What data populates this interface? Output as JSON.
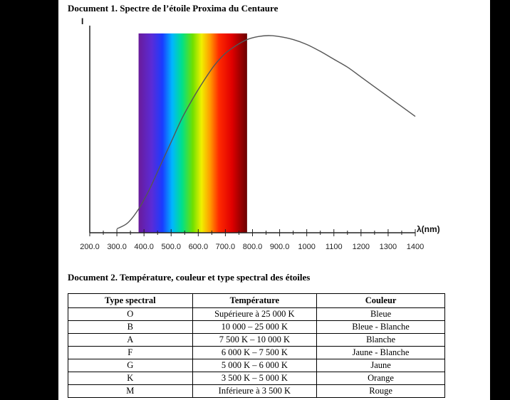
{
  "document1": {
    "title": "Document 1. Spectre de l’étoile Proxima du Centaure"
  },
  "chart_data": {
    "type": "line",
    "title": "",
    "ylabel": "I",
    "xlabel": "λ(nm)",
    "xlim": [
      200,
      1400
    ],
    "x_ticks": [
      "200.0",
      "300.0",
      "400.0",
      "500.0",
      "600.0",
      "700.0",
      "800.0",
      "900.0",
      "1000",
      "1100",
      "1200",
      "1300",
      "1400"
    ],
    "visible_band_nm": [
      380,
      780
    ],
    "grid": false,
    "series": [
      {
        "x": [
          300,
          340,
          380,
          420,
          460,
          500,
          540,
          580,
          620,
          660,
          700,
          740,
          780,
          820,
          860,
          900,
          950,
          1000,
          1050,
          1100,
          1150,
          1200,
          1250,
          1300,
          1350,
          1400
        ],
        "y": [
          0.02,
          0.05,
          0.12,
          0.22,
          0.34,
          0.46,
          0.58,
          0.68,
          0.77,
          0.85,
          0.91,
          0.95,
          0.98,
          0.995,
          1.0,
          0.995,
          0.98,
          0.955,
          0.92,
          0.88,
          0.84,
          0.79,
          0.74,
          0.69,
          0.64,
          0.59
        ]
      }
    ]
  },
  "document2": {
    "title": "Document 2. Température, couleur et type spectral des étoiles",
    "headers": [
      "Type spectral",
      "Température",
      "Couleur"
    ],
    "rows": [
      [
        "O",
        "Supérieure à 25 000 K",
        "Bleue"
      ],
      [
        "B",
        "10 000 – 25 000 K",
        "Bleue - Blanche"
      ],
      [
        "A",
        "7 500 K – 10 000 K",
        "Blanche"
      ],
      [
        "F",
        "6 000 K – 7 500 K",
        "Jaune - Blanche"
      ],
      [
        "G",
        "5 000 K – 6 000 K",
        "Jaune"
      ],
      [
        "K",
        "3 500 K – 5 000 K",
        "Orange"
      ],
      [
        "M",
        "Inférieure à 3 500 K",
        "Rouge"
      ]
    ]
  },
  "colors": {
    "background": "#000000",
    "sheet": "#ffffff",
    "curve": "#555555",
    "axis": "#222222"
  }
}
